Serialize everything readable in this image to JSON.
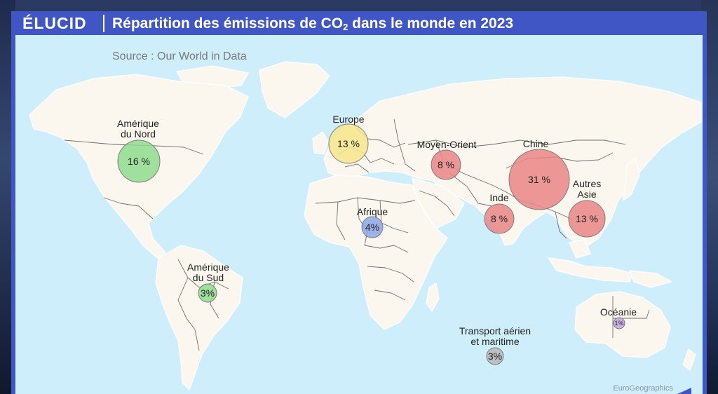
{
  "header": {
    "logo": "ÉLUCID",
    "title_main": "Répartition des émissions de CO",
    "title_sub": "2",
    "title_end": " dans le monde en 2023"
  },
  "source": "Source : Our World in Data",
  "credit": "EuroGeographics",
  "colors": {
    "frame": "#3f56c4",
    "ocean": "#cfeefc",
    "land": "#fbf7ee"
  },
  "regions": [
    {
      "id": "amerique-du-nord",
      "label": "Amérique\ndu Nord",
      "value_text": "16 %",
      "value": 16,
      "color": "#8edc8e"
    },
    {
      "id": "europe",
      "label": "Europe",
      "value_text": "13 %",
      "value": 13,
      "color": "#f6e68a"
    },
    {
      "id": "moyen-orient",
      "label": "Moyen-Orient",
      "value_text": "8 %",
      "value": 8,
      "color": "#e98686"
    },
    {
      "id": "chine",
      "label": "Chine",
      "value_text": "31 %",
      "value": 31,
      "color": "#e98686"
    },
    {
      "id": "autres-asie",
      "label": "Autres\nAsie",
      "value_text": "13 %",
      "value": 13,
      "color": "#e98686"
    },
    {
      "id": "inde",
      "label": "Inde",
      "value_text": "8 %",
      "value": 8,
      "color": "#e98686"
    },
    {
      "id": "afrique",
      "label": "Afrique",
      "value_text": "4%",
      "value": 4,
      "color": "#8aa7e6"
    },
    {
      "id": "amerique-du-sud",
      "label": "Amérique\ndu Sud",
      "value_text": "3%",
      "value": 3,
      "color": "#8edc8e"
    },
    {
      "id": "oceanie",
      "label": "Océanie",
      "value_text": "1%",
      "value": 1,
      "color": "#c6a6e4"
    },
    {
      "id": "transport",
      "label": "Transport aérien\net maritime",
      "value_text": "3%",
      "value": 3,
      "color": "#b7b7b7"
    }
  ]
}
